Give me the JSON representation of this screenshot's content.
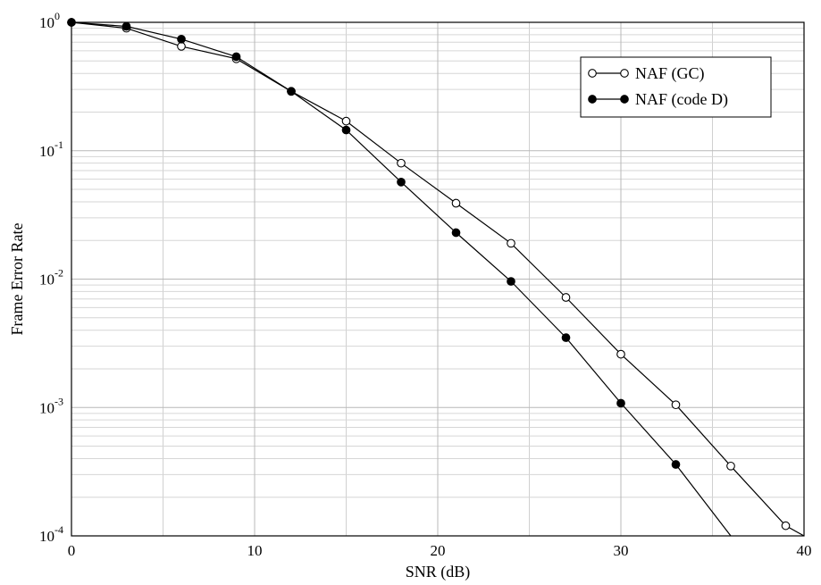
{
  "chart_data": {
    "type": "line",
    "title": "",
    "xlabel": "SNR (dB)",
    "ylabel": "Frame Error Rate",
    "xlim": [
      0,
      40
    ],
    "ylim": [
      0.0001,
      1
    ],
    "yscale": "log",
    "grid": true,
    "legend_position": "top-right",
    "xticks": [
      {
        "value": 0,
        "label": "0"
      },
      {
        "value": 10,
        "label": "10"
      },
      {
        "value": 20,
        "label": "20"
      },
      {
        "value": 30,
        "label": "30"
      },
      {
        "value": 40,
        "label": "40"
      }
    ],
    "yticks": [
      {
        "value": 1,
        "base": "10",
        "exp": "0"
      },
      {
        "value": 0.1,
        "base": "10",
        "exp": "-1"
      },
      {
        "value": 0.01,
        "base": "10",
        "exp": "-2"
      },
      {
        "value": 0.001,
        "base": "10",
        "exp": "-3"
      },
      {
        "value": 0.0001,
        "base": "10",
        "exp": "-4"
      }
    ],
    "series": [
      {
        "name": "NAF (GC)",
        "marker": "open-circle",
        "color": "#000000",
        "x": [
          0,
          3,
          6,
          9,
          12,
          15,
          18,
          21,
          24,
          27,
          30,
          33,
          36,
          39,
          40
        ],
        "y": [
          1.0,
          0.9,
          0.65,
          0.52,
          0.29,
          0.17,
          0.08,
          0.039,
          0.019,
          0.0072,
          0.0026,
          0.00105,
          0.00035,
          0.00012,
          0.0001
        ]
      },
      {
        "name": "NAF (code D)",
        "marker": "filled-circle",
        "color": "#000000",
        "x": [
          0,
          3,
          6,
          9,
          12,
          15,
          18,
          21,
          24,
          27,
          30,
          33,
          36
        ],
        "y": [
          1.0,
          0.93,
          0.74,
          0.54,
          0.29,
          0.145,
          0.057,
          0.023,
          0.0096,
          0.0035,
          0.00108,
          0.00036,
          0.0001
        ]
      }
    ]
  }
}
